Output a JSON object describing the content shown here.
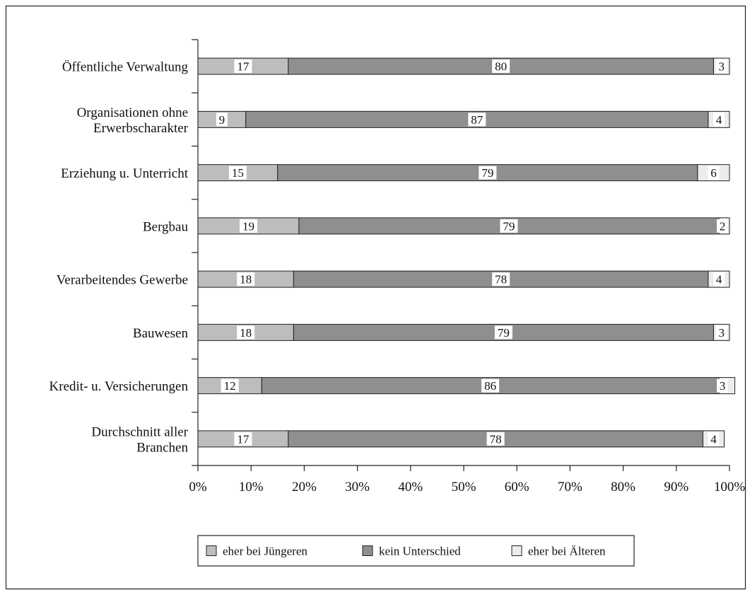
{
  "chart_data": {
    "type": "bar",
    "orientation": "horizontal",
    "stacked": true,
    "categories": [
      [
        "Öffentliche Verwaltung"
      ],
      [
        "Organisationen ohne",
        "Erwerbscharakter"
      ],
      [
        "Erziehung u. Unterricht"
      ],
      [
        "Bergbau"
      ],
      [
        "Verarbeitendes Gewerbe"
      ],
      [
        "Bauwesen"
      ],
      [
        "Kredit- u. Versicherungen"
      ],
      [
        "Durchschnitt aller",
        "Branchen"
      ]
    ],
    "series": [
      {
        "name": "eher bei Jüngeren",
        "color": "#bdbdbd",
        "values": [
          17,
          9,
          15,
          19,
          18,
          18,
          12,
          17
        ]
      },
      {
        "name": "kein Unterschied",
        "color": "#8f8f8f",
        "values": [
          80,
          87,
          79,
          79,
          78,
          79,
          86,
          78
        ]
      },
      {
        "name": "eher bei Älteren",
        "color": "#ececec",
        "values": [
          3,
          4,
          6,
          2,
          4,
          3,
          3,
          4
        ]
      }
    ],
    "xlim": [
      0,
      100
    ],
    "xticks": [
      "0%",
      "10%",
      "20%",
      "30%",
      "40%",
      "50%",
      "60%",
      "70%",
      "80%",
      "90%",
      "100%"
    ],
    "grid": false,
    "legend_position": "bottom-center",
    "title": "",
    "xlabel": "",
    "ylabel": ""
  }
}
